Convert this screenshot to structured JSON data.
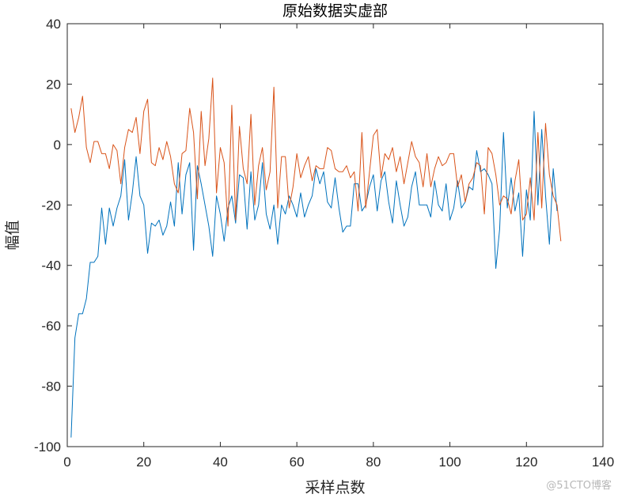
{
  "chart_data": {
    "type": "line",
    "title": "原始数据实虚部",
    "xlabel": "采样点数",
    "ylabel": "幅值",
    "xlim": [
      0,
      140
    ],
    "ylim": [
      -100,
      40
    ],
    "xticks": [
      0,
      20,
      40,
      60,
      80,
      100,
      120,
      140
    ],
    "yticks": [
      -100,
      -80,
      -60,
      -40,
      -20,
      0,
      20,
      40
    ],
    "grid": false,
    "colors": {
      "series1": "#0072bd",
      "series2": "#d95319"
    },
    "series": [
      {
        "values": [
          -97,
          -64,
          -56,
          -56,
          -51,
          -39,
          -39,
          -37,
          -21,
          -33,
          -21,
          -27,
          -21,
          -17,
          -5,
          -25,
          -16,
          -4,
          -17,
          -20,
          -36,
          -26,
          -27,
          -25,
          -30,
          -27,
          -19,
          -27,
          -6,
          -23,
          -10,
          -6,
          -35,
          -7,
          -13,
          -20,
          -27,
          -37,
          -17,
          -23,
          -32,
          -21,
          -17,
          -26,
          -10,
          -11,
          -28,
          -9,
          -25,
          -20,
          -6,
          -23,
          -28,
          -20,
          -33,
          -20,
          -23,
          -17,
          -20,
          -24,
          -16,
          -24,
          -20,
          -17,
          -8,
          -13,
          -9,
          -19,
          -21,
          -11,
          -21,
          -29,
          -27,
          -27,
          -13,
          -13,
          -22,
          -20,
          -14,
          -10,
          -22,
          -12,
          -9,
          -19,
          -26,
          -12,
          -20,
          -27,
          -24,
          -14,
          -9,
          -20,
          -20,
          -20,
          -24,
          -12,
          -20,
          -22,
          -13,
          -25,
          -21,
          -12,
          -21,
          -19,
          -14,
          -15,
          -2,
          -9,
          -8,
          -10,
          -13,
          -41,
          -28,
          4,
          -21,
          -11,
          -22,
          -16,
          -37,
          -15,
          -25,
          11,
          -20,
          5,
          -17,
          -33,
          -8,
          -22
        ]
      },
      {
        "values": [
          12,
          4,
          9,
          16,
          -1,
          -6,
          1,
          1,
          -3,
          -3,
          -8,
          0,
          -2,
          -13,
          -1,
          5,
          4,
          9,
          -3,
          11,
          15,
          -6,
          -7,
          -1,
          -5,
          1,
          -4,
          -13,
          -16,
          -3,
          -2,
          12,
          4,
          -18,
          11,
          -7,
          2,
          22,
          -16,
          -1,
          -6,
          -27,
          13,
          -25,
          6,
          -8,
          -13,
          10,
          -20,
          -7,
          -1,
          -15,
          -9,
          19,
          -21,
          -4,
          -4,
          -21,
          -14,
          -3,
          -11,
          -7,
          -4,
          -12,
          -7,
          -8,
          -8,
          -1,
          -2,
          -8,
          -9,
          -9,
          -7,
          -11,
          -9,
          -22,
          4,
          -21,
          -9,
          3,
          5,
          -11,
          -3,
          -5,
          -1,
          -9,
          -4,
          -13,
          -6,
          1,
          -4,
          -6,
          -14,
          -3,
          -14,
          -8,
          -4,
          -7,
          -6,
          -3,
          -3,
          -14,
          -10,
          -19,
          -13,
          -11,
          -6,
          -7,
          -23,
          -1,
          -3,
          -10,
          -20,
          -17,
          -18,
          -23,
          -12,
          -5,
          -25,
          -23,
          -11,
          -25,
          4,
          -21,
          7,
          -10,
          -17,
          -20,
          -32
        ]
      }
    ]
  },
  "watermark": "@51CTO博客"
}
